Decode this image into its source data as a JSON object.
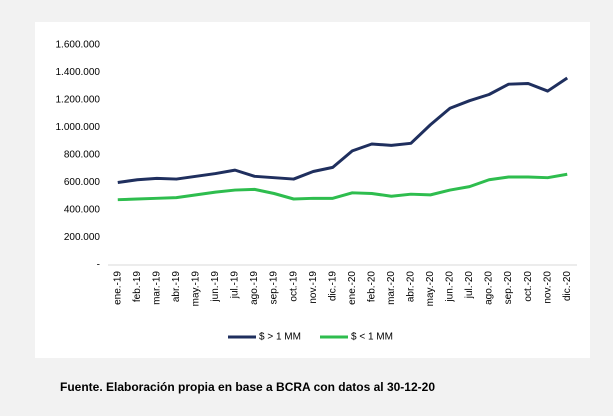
{
  "chart_data": {
    "type": "line",
    "categories": [
      "ene.-19",
      "feb.-19",
      "mar.-19",
      "abr.-19",
      "may.-19",
      "jun.-19",
      "jul.-19",
      "ago.-19",
      "sep.-19",
      "oct.-19",
      "nov.-19",
      "dic.-19",
      "ene.-20",
      "feb.-20",
      "mar.-20",
      "abr.-20",
      "may.-20",
      "jun.-20",
      "jul.-20",
      "ago.-20",
      "sep.-20",
      "oct.-20",
      "nov.-20",
      "dic.-20"
    ],
    "series": [
      {
        "name": "$ > 1 MM",
        "color": "#1f2f5e",
        "values": [
          600000,
          620000,
          630000,
          625000,
          645000,
          665000,
          690000,
          645000,
          635000,
          625000,
          680000,
          710000,
          830000,
          880000,
          870000,
          885000,
          1020000,
          1140000,
          1195000,
          1240000,
          1315000,
          1320000,
          1265000,
          1360000
        ]
      },
      {
        "name": "$ < 1 MM",
        "color": "#2ebd4e",
        "values": [
          475000,
          480000,
          485000,
          490000,
          510000,
          530000,
          545000,
          550000,
          520000,
          480000,
          485000,
          485000,
          525000,
          520000,
          500000,
          515000,
          510000,
          545000,
          570000,
          620000,
          640000,
          640000,
          635000,
          660000
        ]
      }
    ],
    "ylim": [
      0,
      1600000
    ],
    "yticks": [
      {
        "value": 0,
        "label": "-"
      },
      {
        "value": 200000,
        "label": "200.000"
      },
      {
        "value": 400000,
        "label": "400.000"
      },
      {
        "value": 600000,
        "label": "600.000"
      },
      {
        "value": 800000,
        "label": "800.000"
      },
      {
        "value": 1000000,
        "label": "1.000.000"
      },
      {
        "value": 1200000,
        "label": "1.200.000"
      },
      {
        "value": 1400000,
        "label": "1.400.000"
      },
      {
        "value": 1600000,
        "label": "1.600.000"
      }
    ],
    "grid": false,
    "legend": "bottom",
    "source": "Fuente. Elaboración propia en base a BCRA con datos al 30-12-20"
  }
}
